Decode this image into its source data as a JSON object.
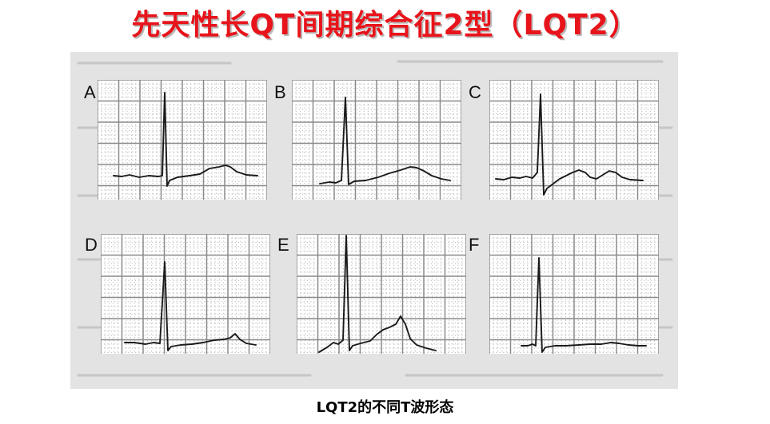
{
  "title": "先天性长QT间期综合征2型（LQT2）",
  "caption": "LQT2的不同T波形态",
  "colors": {
    "title": "#e8141b",
    "trace": "#1a1a1a",
    "grid_major": "#8a8a8a",
    "grid_minor": "#b4b4b4"
  },
  "panels": [
    {
      "label": "A",
      "note": "low broad T wave"
    },
    {
      "label": "B",
      "note": "broad rounded T wave"
    },
    {
      "label": "C",
      "note": "biphasic T wave"
    },
    {
      "label": "D",
      "note": "flat T with late hump"
    },
    {
      "label": "E",
      "note": "tall notched T wave"
    },
    {
      "label": "F",
      "note": "flat T wave"
    }
  ]
}
